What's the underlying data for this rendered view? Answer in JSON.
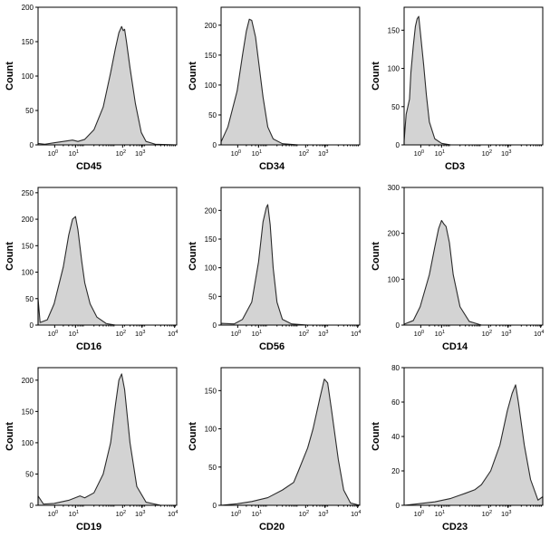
{
  "chart_data": [
    {
      "type": "histogram",
      "xlabel": "CD45",
      "ylabel": "Count",
      "xscale": "log",
      "xlim": [
        0.3,
        10000
      ],
      "ylim": [
        0,
        200
      ],
      "yticks": [
        0,
        50,
        100,
        150,
        200
      ],
      "xticks": [
        "10^0",
        "10^1",
        "10^2",
        "10^3"
      ],
      "curve": [
        [
          0.3,
          2
        ],
        [
          0.5,
          1
        ],
        [
          1,
          3
        ],
        [
          2,
          5
        ],
        [
          4,
          7
        ],
        [
          6,
          5
        ],
        [
          10,
          8
        ],
        [
          20,
          22
        ],
        [
          40,
          55
        ],
        [
          70,
          105
        ],
        [
          100,
          140
        ],
        [
          130,
          163
        ],
        [
          160,
          172
        ],
        [
          180,
          166
        ],
        [
          200,
          168
        ],
        [
          230,
          150
        ],
        [
          300,
          112
        ],
        [
          450,
          60
        ],
        [
          700,
          18
        ],
        [
          1000,
          5
        ],
        [
          2000,
          1
        ],
        [
          10000,
          0
        ]
      ]
    },
    {
      "type": "histogram",
      "xlabel": "CD34",
      "ylabel": "Count",
      "xscale": "log",
      "xlim": [
        0.3,
        10000
      ],
      "ylim": [
        0,
        230
      ],
      "yticks": [
        0,
        50,
        100,
        150,
        200
      ],
      "xticks": [
        "10^0",
        "10^1",
        "10^2",
        "10^3"
      ],
      "curve": [
        [
          0.3,
          5
        ],
        [
          0.5,
          30
        ],
        [
          1,
          90
        ],
        [
          1.5,
          150
        ],
        [
          2,
          190
        ],
        [
          2.5,
          210
        ],
        [
          3,
          208
        ],
        [
          4,
          180
        ],
        [
          5,
          140
        ],
        [
          7,
          80
        ],
        [
          10,
          30
        ],
        [
          15,
          10
        ],
        [
          30,
          2
        ],
        [
          100,
          0
        ],
        [
          10000,
          0
        ]
      ]
    },
    {
      "type": "histogram",
      "xlabel": "CD3",
      "ylabel": "Count",
      "xscale": "log",
      "xlim": [
        0.3,
        10000
      ],
      "ylim": [
        0,
        180
      ],
      "yticks": [
        0,
        50,
        100,
        150
      ],
      "xticks": [
        "10^0",
        "10^1",
        "10^2",
        "10^3"
      ],
      "curve": [
        [
          0.3,
          5
        ],
        [
          0.35,
          40
        ],
        [
          0.45,
          60
        ],
        [
          0.5,
          95
        ],
        [
          0.6,
          130
        ],
        [
          0.7,
          155
        ],
        [
          0.8,
          165
        ],
        [
          0.9,
          168
        ],
        [
          1,
          150
        ],
        [
          1.3,
          105
        ],
        [
          1.6,
          65
        ],
        [
          2,
          30
        ],
        [
          3,
          8
        ],
        [
          5,
          2
        ],
        [
          10,
          0
        ],
        [
          10000,
          0
        ]
      ]
    },
    {
      "type": "histogram",
      "xlabel": "CD16",
      "ylabel": "Count",
      "xscale": "log",
      "xlim": [
        0.3,
        10000
      ],
      "ylim": [
        0,
        260
      ],
      "yticks": [
        0,
        50,
        100,
        150,
        200,
        250
      ],
      "xticks": [
        "10^0",
        "10^1",
        "10^2",
        "10^3",
        "10^4"
      ],
      "curve": [
        [
          0.3,
          50
        ],
        [
          0.35,
          5
        ],
        [
          0.6,
          10
        ],
        [
          1,
          40
        ],
        [
          2,
          110
        ],
        [
          3,
          170
        ],
        [
          4,
          200
        ],
        [
          5,
          205
        ],
        [
          6,
          180
        ],
        [
          8,
          120
        ],
        [
          10,
          80
        ],
        [
          15,
          40
        ],
        [
          25,
          15
        ],
        [
          50,
          3
        ],
        [
          100,
          0
        ],
        [
          10000,
          0
        ]
      ]
    },
    {
      "type": "histogram",
      "xlabel": "CD56",
      "ylabel": "Count",
      "xscale": "log",
      "xlim": [
        0.3,
        10000
      ],
      "ylim": [
        0,
        240
      ],
      "yticks": [
        0,
        50,
        100,
        150,
        200
      ],
      "xticks": [
        "10^0",
        "10^1",
        "10^2",
        "10^3",
        "10^4"
      ],
      "curve": [
        [
          0.3,
          3
        ],
        [
          0.8,
          2
        ],
        [
          1.5,
          10
        ],
        [
          3,
          40
        ],
        [
          5,
          110
        ],
        [
          7,
          180
        ],
        [
          9,
          205
        ],
        [
          10,
          210
        ],
        [
          12,
          175
        ],
        [
          15,
          100
        ],
        [
          20,
          40
        ],
        [
          30,
          10
        ],
        [
          60,
          2
        ],
        [
          200,
          0
        ],
        [
          10000,
          0
        ]
      ]
    },
    {
      "type": "histogram",
      "xlabel": "CD14",
      "ylabel": "Count",
      "xscale": "log",
      "xlim": [
        0.3,
        10000
      ],
      "ylim": [
        0,
        300
      ],
      "yticks": [
        0,
        100,
        200,
        300
      ],
      "xticks": [
        "10^0",
        "10^1",
        "10^2",
        "10^3",
        "10^4"
      ],
      "curve": [
        [
          0.3,
          2
        ],
        [
          0.6,
          10
        ],
        [
          1,
          40
        ],
        [
          2,
          110
        ],
        [
          3,
          170
        ],
        [
          4,
          210
        ],
        [
          5,
          228
        ],
        [
          6,
          220
        ],
        [
          7,
          215
        ],
        [
          9,
          180
        ],
        [
          12,
          110
        ],
        [
          20,
          40
        ],
        [
          40,
          8
        ],
        [
          100,
          0
        ],
        [
          10000,
          0
        ]
      ]
    },
    {
      "type": "histogram",
      "xlabel": "CD19",
      "ylabel": "Count",
      "xscale": "log",
      "xlim": [
        0.3,
        10000
      ],
      "ylim": [
        0,
        220
      ],
      "yticks": [
        0,
        50,
        100,
        150,
        200
      ],
      "xticks": [
        "10^0",
        "10^1",
        "10^2",
        "10^3",
        "10^4"
      ],
      "curve": [
        [
          0.3,
          15
        ],
        [
          0.45,
          2
        ],
        [
          1,
          3
        ],
        [
          3,
          8
        ],
        [
          7,
          15
        ],
        [
          10,
          12
        ],
        [
          20,
          20
        ],
        [
          40,
          50
        ],
        [
          70,
          100
        ],
        [
          100,
          160
        ],
        [
          130,
          200
        ],
        [
          160,
          210
        ],
        [
          200,
          185
        ],
        [
          300,
          100
        ],
        [
          500,
          30
        ],
        [
          1000,
          5
        ],
        [
          3000,
          0
        ],
        [
          10000,
          0
        ]
      ]
    },
    {
      "type": "histogram",
      "xlabel": "CD20",
      "ylabel": "Count",
      "xscale": "log",
      "xlim": [
        0.3,
        10000
      ],
      "ylim": [
        0,
        180
      ],
      "yticks": [
        0,
        50,
        100,
        150
      ],
      "xticks": [
        "10^0",
        "10^1",
        "10^2",
        "10^3",
        "10^4"
      ],
      "curve": [
        [
          0.3,
          0
        ],
        [
          1,
          2
        ],
        [
          3,
          5
        ],
        [
          10,
          10
        ],
        [
          30,
          20
        ],
        [
          70,
          30
        ],
        [
          100,
          45
        ],
        [
          200,
          75
        ],
        [
          300,
          100
        ],
        [
          500,
          140
        ],
        [
          700,
          165
        ],
        [
          900,
          160
        ],
        [
          1200,
          125
        ],
        [
          2000,
          60
        ],
        [
          3000,
          20
        ],
        [
          5000,
          3
        ],
        [
          10000,
          0
        ]
      ]
    },
    {
      "type": "histogram",
      "xlabel": "CD23",
      "ylabel": "Count",
      "xscale": "log",
      "xlim": [
        0.3,
        10000
      ],
      "ylim": [
        0,
        80
      ],
      "yticks": [
        0,
        20,
        40,
        60,
        80
      ],
      "xticks": [
        "10^0",
        "10^1",
        "10^2",
        "10^3"
      ],
      "curve": [
        [
          0.3,
          0
        ],
        [
          1,
          1
        ],
        [
          3,
          2
        ],
        [
          10,
          4
        ],
        [
          30,
          7
        ],
        [
          60,
          9
        ],
        [
          100,
          12
        ],
        [
          200,
          20
        ],
        [
          400,
          35
        ],
        [
          700,
          55
        ],
        [
          1000,
          65
        ],
        [
          1300,
          70
        ],
        [
          1600,
          60
        ],
        [
          2500,
          35
        ],
        [
          4000,
          15
        ],
        [
          7000,
          3
        ],
        [
          10000,
          5
        ]
      ]
    }
  ]
}
